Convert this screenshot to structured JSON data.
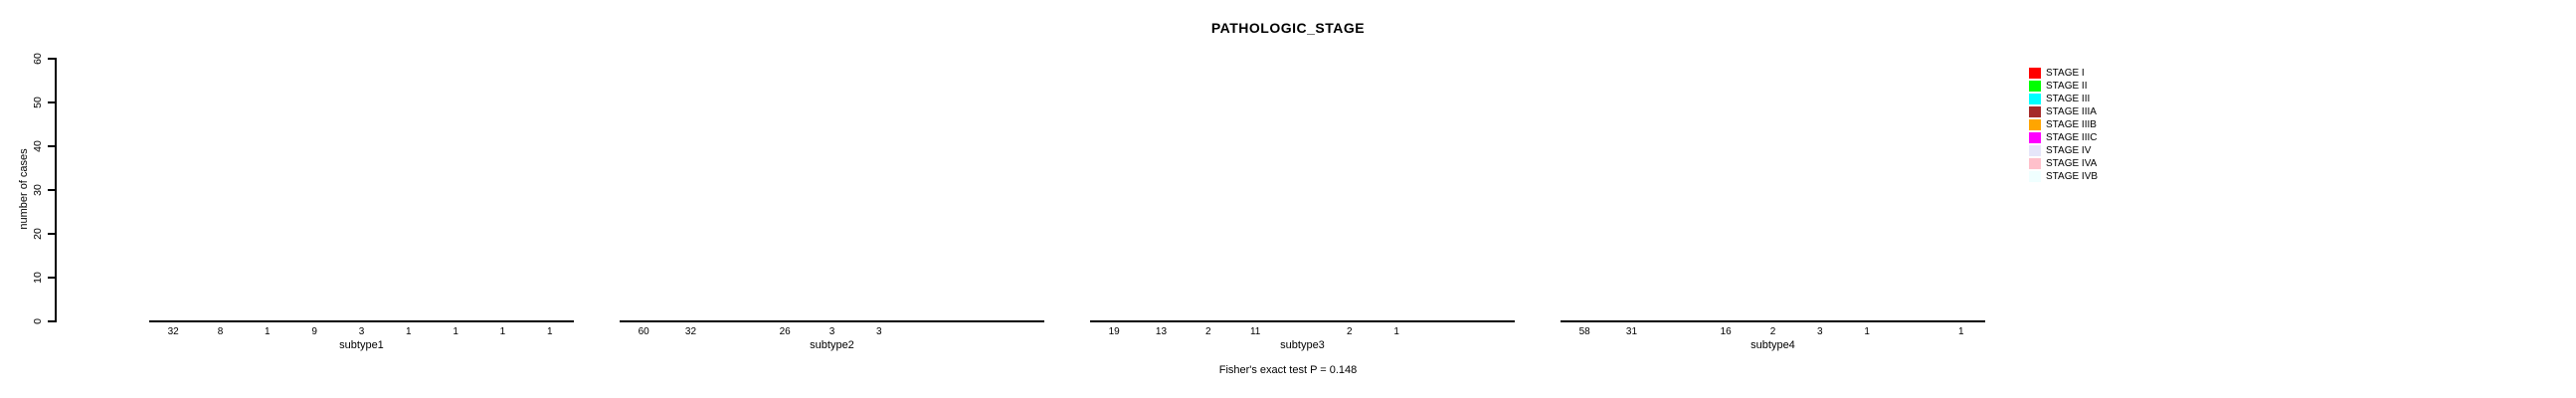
{
  "title": "PATHOLOGIC_STAGE",
  "footer": "Fisher's exact test P = 0.148",
  "y_axis": {
    "label": "number of cases",
    "ticks": [
      0,
      10,
      20,
      30,
      40,
      50,
      60
    ]
  },
  "legend": {
    "entries": [
      {
        "label": "STAGE I",
        "color": "#FF0000"
      },
      {
        "label": "STAGE II",
        "color": "#00FF00"
      },
      {
        "label": "STAGE III",
        "color": "#00FFFF"
      },
      {
        "label": "STAGE IIIA",
        "color": "#A52A2A"
      },
      {
        "label": "STAGE IIIB",
        "color": "#FFA500"
      },
      {
        "label": "STAGE IIIC",
        "color": "#FF00FF"
      },
      {
        "label": "STAGE IV",
        "color": "#E6E6FA"
      },
      {
        "label": "STAGE IVA",
        "color": "#FFC0CB"
      },
      {
        "label": "STAGE IVB",
        "color": "#F0FFFF"
      }
    ]
  },
  "chart_data": {
    "type": "bar",
    "title": "PATHOLOGIC_STAGE",
    "xlabel": "",
    "ylabel": "number of cases",
    "ylim": [
      0,
      60
    ],
    "yticks": [
      0,
      10,
      20,
      30,
      40,
      50,
      60
    ],
    "grid": false,
    "legend_position": "right",
    "bar_labels_shown": true,
    "categories": [
      "STAGE I",
      "STAGE II",
      "STAGE III",
      "STAGE IIIA",
      "STAGE IIIB",
      "STAGE IIIC",
      "STAGE IV",
      "STAGE IVA",
      "STAGE IVB"
    ],
    "colors": [
      "#FF0000",
      "#00FF00",
      "#00FFFF",
      "#A52A2A",
      "#FFA500",
      "#FF00FF",
      "#E6E6FA",
      "#FFC0CB",
      "#F0FFFF"
    ],
    "groups": [
      {
        "label": "subtype1",
        "values": [
          32,
          8,
          1,
          9,
          3,
          1,
          1,
          1,
          1
        ]
      },
      {
        "label": "subtype2",
        "values": [
          60,
          32,
          0,
          26,
          3,
          3,
          0,
          0,
          0
        ]
      },
      {
        "label": "subtype3",
        "values": [
          19,
          13,
          2,
          11,
          0,
          2,
          1,
          0,
          0
        ]
      },
      {
        "label": "subtype4",
        "values": [
          58,
          31,
          0,
          16,
          2,
          3,
          1,
          0,
          1
        ]
      }
    ],
    "annotation": "Fisher's exact test P = 0.148"
  }
}
